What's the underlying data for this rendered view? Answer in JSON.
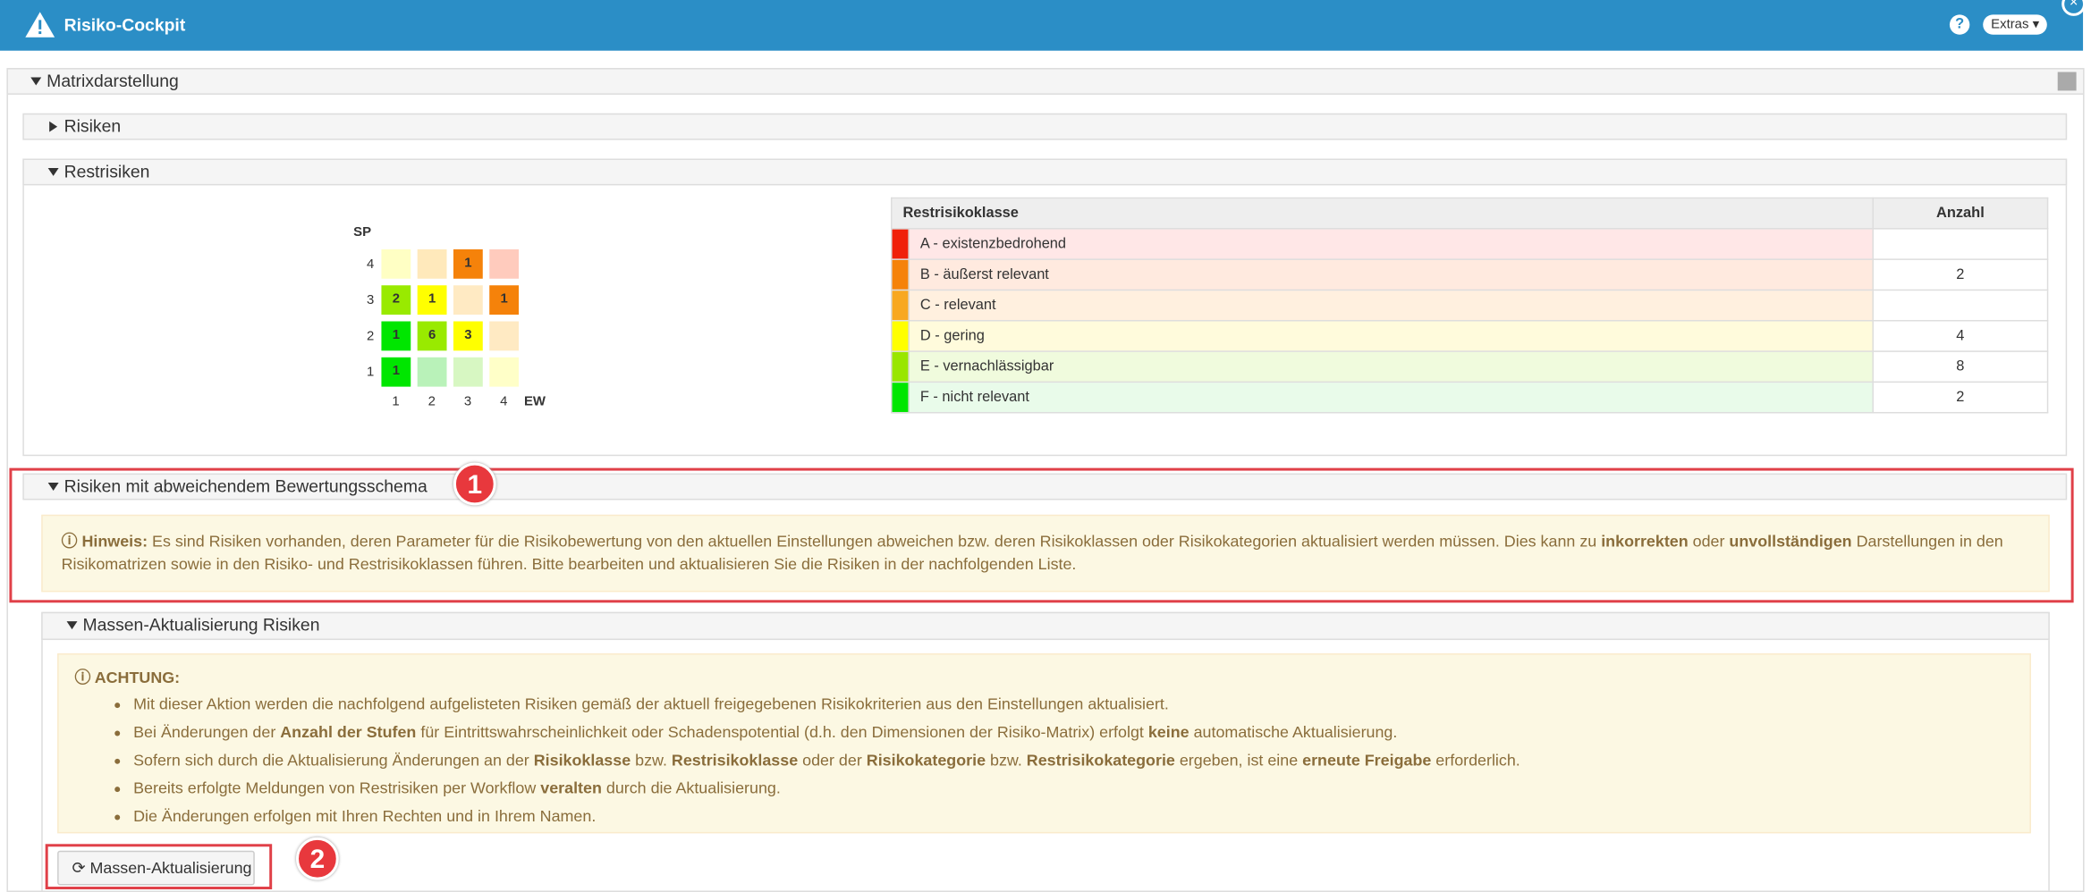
{
  "header": {
    "title": "Risiko-Cockpit",
    "help": "?",
    "extras": "Extras"
  },
  "sections": {
    "matrix": "Matrixdarstellung",
    "risks": "Risiken",
    "residual": "Restrisiken",
    "deviating": "Risiken mit abweichendem Bewertungsschema",
    "mass_update": "Massen-Aktualisierung Risiken"
  },
  "matrix": {
    "y_label": "SP",
    "x_label": "EW",
    "y_ticks": [
      4,
      3,
      2,
      1
    ],
    "x_ticks": [
      1,
      2,
      3,
      4
    ],
    "cells": [
      [
        {
          "value": null,
          "color": "#ffffc4"
        },
        {
          "value": null,
          "color": "#ffe9bb"
        },
        {
          "value": 1,
          "color": "#f5820a"
        },
        {
          "value": null,
          "color": "#ffcbbd"
        }
      ],
      [
        {
          "value": 2,
          "color": "#99ea00"
        },
        {
          "value": 1,
          "color": "#ffff00"
        },
        {
          "value": null,
          "color": "#ffeac3"
        },
        {
          "value": 1,
          "color": "#f5820a"
        }
      ],
      [
        {
          "value": 1,
          "color": "#00e600"
        },
        {
          "value": 6,
          "color": "#99ea00"
        },
        {
          "value": 3,
          "color": "#ffff00"
        },
        {
          "value": null,
          "color": "#ffeac3"
        }
      ],
      [
        {
          "value": 1,
          "color": "#00e600"
        },
        {
          "value": null,
          "color": "#b9f2b9"
        },
        {
          "value": null,
          "color": "#d7f7c2"
        },
        {
          "value": null,
          "color": "#ffffc8"
        }
      ]
    ]
  },
  "table": {
    "headers": [
      "Restrisikoklasse",
      "Anzahl"
    ],
    "rows": [
      {
        "color": "#f0200a",
        "background": "#ffe7e7",
        "label": "A - existenzbedrohend",
        "count": null
      },
      {
        "color": "#f5820a",
        "background": "#ffeadf",
        "label": "B - äußerst relevant",
        "count": 2
      },
      {
        "color": "#f8a820",
        "background": "#fff0df",
        "label": "C - relevant",
        "count": null
      },
      {
        "color": "#ffff00",
        "background": "#fffbdc",
        "label": "D - gering",
        "count": 4
      },
      {
        "color": "#99e600",
        "background": "#f0fbdd",
        "label": "E - vernachlässigbar",
        "count": 8
      },
      {
        "color": "#00e600",
        "background": "#e9fbea",
        "label": "F - nicht relevant",
        "count": 2
      }
    ]
  },
  "hint": [
    {
      "text": "Hinweis:",
      "bold": true
    },
    {
      "text": " Es sind Risiken vorhanden, deren Parameter für die Risikobewertung von den aktuellen Einstellungen abweichen bzw. deren Risikoklassen oder Risikokategorien aktualisiert werden müssen. Dies kann zu ",
      "bold": false
    },
    {
      "text": "inkorrekten",
      "bold": true
    },
    {
      "text": " oder ",
      "bold": false
    },
    {
      "text": "unvollständigen",
      "bold": true
    },
    {
      "text": " Darstellungen in den Risikomatrizen sowie in den Risiko- und Restrisikoklassen führen. Bitte bearbeiten und aktualisieren Sie die Risiken in der nachfolgenden Liste.",
      "bold": false
    }
  ],
  "warning": {
    "title": "ACHTUNG:",
    "items": [
      [
        {
          "text": "Mit dieser Aktion werden die nachfolgend aufgelisteten Risiken gemäß der aktuell freigegebenen Risikokriterien aus den Einstellungen aktualisiert.",
          "bold": false
        }
      ],
      [
        {
          "text": "Bei Änderungen der ",
          "bold": false
        },
        {
          "text": "Anzahl der Stufen",
          "bold": true
        },
        {
          "text": " für Eintrittswahrscheinlichkeit oder Schadenspotential (d.h. den Dimensionen der Risiko-Matrix) erfolgt ",
          "bold": false
        },
        {
          "text": "keine",
          "bold": true
        },
        {
          "text": " automatische Aktualisierung.",
          "bold": false
        }
      ],
      [
        {
          "text": "Sofern sich durch die Aktualisierung Änderungen an der ",
          "bold": false
        },
        {
          "text": "Risikoklasse",
          "bold": true
        },
        {
          "text": " bzw. ",
          "bold": false
        },
        {
          "text": "Restrisikoklasse",
          "bold": true
        },
        {
          "text": " oder der ",
          "bold": false
        },
        {
          "text": "Risikokategorie",
          "bold": true
        },
        {
          "text": " bzw. ",
          "bold": false
        },
        {
          "text": "Restrisikokategorie",
          "bold": true
        },
        {
          "text": " ergeben, ist eine ",
          "bold": false
        },
        {
          "text": "erneute Freigabe",
          "bold": true
        },
        {
          "text": " erforderlich.",
          "bold": false
        }
      ],
      [
        {
          "text": "Bereits erfolgte Meldungen von Restrisiken per Workflow ",
          "bold": false
        },
        {
          "text": "veralten",
          "bold": true
        },
        {
          "text": " durch die Aktualisierung.",
          "bold": false
        }
      ],
      [
        {
          "text": "Die Änderungen erfolgen mit Ihren Rechten und in Ihrem Namen.",
          "bold": false
        }
      ]
    ]
  },
  "button": "Massen-Aktualisierung",
  "annotations": [
    "1",
    "2"
  ]
}
